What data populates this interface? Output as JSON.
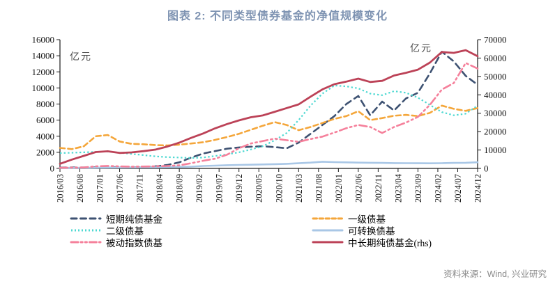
{
  "header": {
    "title": "图表 2:  不同类型债券基金的净值规模变化"
  },
  "footer": {
    "source": "资料来源：Wind, 兴业研究"
  },
  "colors": {
    "title": "#7e93b2",
    "short_term_pure_bond": "#3e5272",
    "first_level": "#f4a63a",
    "second_level": "#4ed9d2",
    "convertible": "#a9c7e6",
    "passive_index": "#f5809b",
    "medium_long_pure_bond": "#bc4257",
    "source_text": "#8a8a8a"
  },
  "legend": {
    "columns": [
      [
        "short_term_pure_bond",
        "second_level",
        "passive_index"
      ],
      [
        "first_level",
        "convertible",
        "medium_long_pure_bond"
      ]
    ]
  },
  "chart_data": {
    "type": "line",
    "title": "图表 2: 不同类型债券基金的净值规模变化",
    "grid": false,
    "legend_position": "bottom",
    "left_axis": {
      "unit": "亿元",
      "min": 0,
      "max": 16000,
      "ticks": [
        0,
        2000,
        4000,
        6000,
        8000,
        10000,
        12000,
        14000,
        16000
      ]
    },
    "right_axis": {
      "unit": "亿元",
      "min": 0,
      "max": 70000,
      "ticks": [
        0,
        10000,
        20000,
        30000,
        40000,
        50000,
        60000,
        70000
      ]
    },
    "x_tick_labels": [
      "2016/03",
      "2016/08",
      "2017/01",
      "2017/06",
      "2017/11",
      "2018/04",
      "2018/09",
      "2019/02",
      "2019/07",
      "2019/12",
      "2020/05",
      "2020/10",
      "2021/03",
      "2021/08",
      "2022/01",
      "2022/06",
      "2022/11",
      "2023/04",
      "2023/09",
      "2024/02",
      "2024/07",
      "2024/12"
    ],
    "x": [
      "2016/03",
      "2016/06",
      "2016/09",
      "2016/12",
      "2017/03",
      "2017/06",
      "2017/09",
      "2017/12",
      "2018/03",
      "2018/06",
      "2018/09",
      "2018/12",
      "2019/03",
      "2019/06",
      "2019/09",
      "2019/12",
      "2020/03",
      "2020/06",
      "2020/09",
      "2020/12",
      "2021/03",
      "2021/06",
      "2021/09",
      "2021/12",
      "2022/03",
      "2022/06",
      "2022/09",
      "2022/12",
      "2023/03",
      "2023/06",
      "2023/09",
      "2023/12",
      "2024/03",
      "2024/06",
      "2024/09",
      "2024/12"
    ],
    "series": [
      {
        "key": "short_term_pure_bond",
        "name": "短期纯债基金",
        "axis": "left",
        "color": "#3e5272",
        "style": "dashed",
        "dash": "9,6",
        "legend_dash": "8,5.5",
        "width": 2.6,
        "linecap": "round",
        "values": [
          100,
          120,
          110,
          140,
          170,
          150,
          140,
          160,
          250,
          420,
          750,
          1350,
          1850,
          2150,
          2450,
          2600,
          2700,
          2750,
          2650,
          2500,
          3200,
          4300,
          5400,
          6500,
          8000,
          9000,
          6600,
          8300,
          7200,
          8700,
          9400,
          11800,
          14500,
          13300,
          11500,
          10400
        ]
      },
      {
        "key": "first_level",
        "name": "一级债基",
        "axis": "left",
        "color": "#f4a63a",
        "style": "dashed",
        "dash": "7,4.5",
        "legend_dash": "5.5,3.5",
        "width": 2.6,
        "linecap": "round",
        "values": [
          2550,
          2400,
          2750,
          4000,
          4150,
          3350,
          3050,
          3000,
          2900,
          2850,
          2950,
          3100,
          3250,
          3550,
          3900,
          4300,
          4800,
          5300,
          5750,
          5400,
          4750,
          5150,
          5650,
          6150,
          6500,
          7100,
          6000,
          6250,
          6550,
          6650,
          6500,
          6900,
          7800,
          7400,
          7150,
          7500
        ]
      },
      {
        "key": "second_level",
        "name": "二级债基",
        "axis": "left",
        "color": "#4ed9d2",
        "style": "dotted",
        "dash": "2.4,3.2",
        "legend_dash": "2,3",
        "width": 2.2,
        "linecap": "butt",
        "values": [
          1900,
          1950,
          2000,
          2050,
          2100,
          1950,
          1800,
          1650,
          1500,
          1400,
          1350,
          1300,
          1350,
          1550,
          1750,
          2000,
          2350,
          2750,
          3500,
          4400,
          6000,
          7800,
          9300,
          10300,
          10200,
          9950,
          9300,
          9100,
          9600,
          9400,
          8800,
          7900,
          7000,
          6600,
          6800,
          7800
        ]
      },
      {
        "key": "convertible",
        "name": "可转换债基",
        "axis": "left",
        "color": "#a9c7e6",
        "style": "solid",
        "dash": "",
        "legend_dash": "",
        "width": 2.6,
        "linecap": "round",
        "values": [
          60,
          70,
          80,
          90,
          100,
          110,
          120,
          130,
          140,
          160,
          180,
          220,
          300,
          350,
          400,
          430,
          460,
          490,
          530,
          570,
          640,
          720,
          830,
          780,
          750,
          720,
          700,
          680,
          660,
          650,
          640,
          630,
          650,
          680,
          700,
          760
        ]
      },
      {
        "key": "passive_index",
        "name": "被动指数债基",
        "axis": "left",
        "color": "#f5809b",
        "style": "dash-dot-dot",
        "dash": "11,4.5,2.4,4.5,2.4,4.5",
        "legend_dash": "10,4,2.2,4,2.2,4",
        "width": 2.6,
        "linecap": "round",
        "values": [
          80,
          100,
          110,
          260,
          310,
          250,
          210,
          230,
          260,
          300,
          380,
          650,
          950,
          1200,
          1700,
          2500,
          3100,
          3400,
          3700,
          3500,
          3300,
          3650,
          3950,
          4450,
          5000,
          5400,
          5150,
          4400,
          5150,
          5700,
          6400,
          7900,
          9800,
          10600,
          13100,
          12400
        ]
      },
      {
        "key": "medium_long_pure_bond",
        "name": "中长期纯债基金(rhs)",
        "axis": "right",
        "color": "#bc4257",
        "style": "solid",
        "dash": "",
        "legend_dash": "",
        "width": 2.8,
        "linecap": "round",
        "values": [
          2500,
          4800,
          6800,
          8900,
          9300,
          8400,
          8700,
          9400,
          10200,
          11900,
          14000,
          16600,
          19000,
          21800,
          24100,
          26100,
          27800,
          28800,
          30800,
          32800,
          34800,
          39000,
          43000,
          45800,
          47200,
          48800,
          47000,
          47600,
          50500,
          52000,
          53700,
          57500,
          63300,
          62800,
          64300,
          61000
        ]
      }
    ]
  }
}
